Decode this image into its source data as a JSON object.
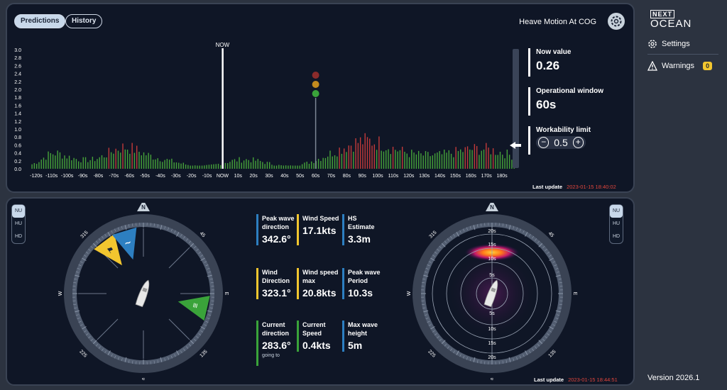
{
  "header": {
    "tabs": [
      {
        "label": "Predictions",
        "active": true
      },
      {
        "label": "History",
        "active": false
      }
    ],
    "title": "Heave Motion At COG"
  },
  "chart_data": {
    "type": "bar",
    "ylim": [
      0,
      3.0
    ],
    "yticks": [
      "0.0",
      "0.2",
      "0.4",
      "0.6",
      "0.8",
      "1.0",
      "1.2",
      "1.4",
      "1.6",
      "1.8",
      "2.0",
      "2.2",
      "2.4",
      "2.6",
      "2.8",
      "3.0"
    ],
    "xticks": [
      "-120s",
      "-110s",
      "-100s",
      "-90s",
      "-80s",
      "-70s",
      "-60s",
      "-50s",
      "-40s",
      "-30s",
      "-20s",
      "-10s",
      "NOW",
      "10s",
      "20s",
      "30s",
      "40s",
      "50s",
      "60s",
      "70s",
      "80s",
      "90s",
      "100s",
      "110s",
      "120s",
      "130s",
      "140s",
      "150s",
      "160s",
      "170s",
      "180s"
    ],
    "now_label": "NOW",
    "threshold": 0.5,
    "colors": {
      "above": "#c23a3a",
      "below": "#46a33a",
      "traffic": [
        "#8b2b2b",
        "#c28a1e",
        "#3aa33a"
      ]
    }
  },
  "metrics": {
    "now_label": "Now value",
    "now_value": "0.26",
    "window_label": "Operational window",
    "window_value": "60s",
    "limit_label": "Workability limit",
    "limit_value": "0.5",
    "minus": "−",
    "plus": "+"
  },
  "top_update": {
    "label": "Last update",
    "ts": "2023-01-15 18:40:02"
  },
  "bottom_update": {
    "label": "Last update",
    "ts": "2023-01-15 18:44:51"
  },
  "sidebar": {
    "logo_top": "NEXT",
    "logo_bottom": "OCEAN",
    "settings": "Settings",
    "warnings": "Warnings",
    "warnings_count": "0",
    "version": "Version 2026.1"
  },
  "modes": [
    "NU",
    "HU",
    "HD"
  ],
  "compass": {
    "N": "N",
    "E": "E",
    "S": "S",
    "W": "W",
    "d315": "315",
    "d45": "45",
    "d225": "225",
    "d135": "135"
  },
  "radar_rings": [
    "20s",
    "15s",
    "10s",
    "5s",
    "5s",
    "10s",
    "15s",
    "20s"
  ],
  "stats": [
    {
      "label": "Peak wave direction",
      "value": "342.6°",
      "color": "#2d7fc1"
    },
    {
      "label": "Wind Speed",
      "value": "17.1kts",
      "color": "#f2c62f"
    },
    {
      "label": "HS Estimate",
      "value": "3.3m",
      "color": "#2d7fc1"
    },
    {
      "label": "Wind Direction",
      "value": "323.1°",
      "color": "#f2c62f"
    },
    {
      "label": "Wind speed max",
      "value": "20.8kts",
      "color": "#f2c62f"
    },
    {
      "label": "Peak wave Period",
      "value": "10.3s",
      "color": "#2d7fc1"
    },
    {
      "label": "Current direction",
      "value": "283.6°",
      "sub": "going to",
      "color": "#3aa33a"
    },
    {
      "label": "Current Speed",
      "value": "0.4kts",
      "color": "#3aa33a"
    },
    {
      "label": "Max wave height",
      "value": "5m",
      "color": "#2d7fc1"
    }
  ]
}
